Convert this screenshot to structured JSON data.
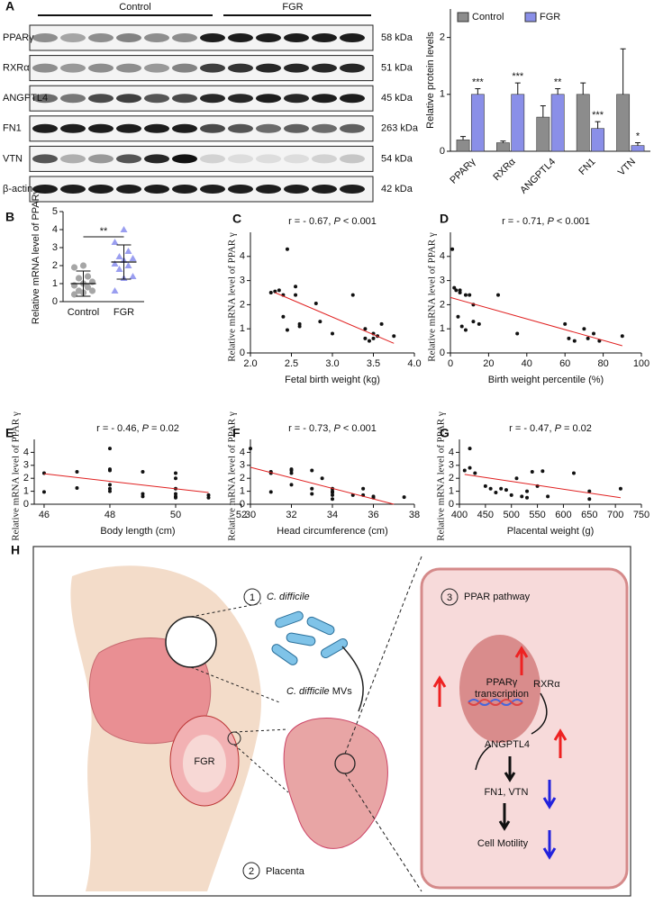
{
  "panel_labels": [
    "A",
    "B",
    "C",
    "D",
    "E",
    "F",
    "G",
    "H"
  ],
  "blot": {
    "groups": [
      "Control",
      "FGR"
    ],
    "rows": [
      {
        "name": "PPARγ",
        "size": "58 kDa"
      },
      {
        "name": "RXRα",
        "size": "51 kDa"
      },
      {
        "name": "ANGPTL4",
        "size": "45 kDa"
      },
      {
        "name": "FN1",
        "size": "263 kDa"
      },
      {
        "name": "VTN",
        "size": "54 kDa"
      },
      {
        "name": "β-actin",
        "size": "42 kDa"
      }
    ]
  },
  "chart_data": [
    {
      "type": "bar",
      "ylabel": "Relative protein levels",
      "categories": [
        "PPARγ",
        "RXRα",
        "ANGPTL4",
        "FN1",
        "VTN"
      ],
      "ylim": [
        0,
        2.5
      ],
      "yticks": [
        0,
        1,
        2
      ],
      "series": [
        {
          "name": "Control",
          "color": "#8c8c8c",
          "values": [
            0.2,
            0.15,
            0.6,
            1.0,
            1.0
          ],
          "errors": [
            0.06,
            0.03,
            0.2,
            0.2,
            0.8
          ]
        },
        {
          "name": "FGR",
          "color": "#8a8fe8",
          "values": [
            1.0,
            1.0,
            1.0,
            0.4,
            0.1
          ],
          "errors": [
            0.1,
            0.2,
            0.1,
            0.12,
            0.05
          ],
          "annotations": [
            "***",
            "***",
            "**",
            "***",
            "*"
          ]
        }
      ]
    },
    {
      "type": "strip",
      "ylabel": "Relative mRNA level of PPARγ",
      "categories": [
        "Control",
        "FGR"
      ],
      "significance": "**",
      "ylim": [
        0,
        5
      ],
      "yticks": [
        0,
        1,
        2,
        3,
        4,
        5
      ],
      "series": [
        {
          "color": "#a6a6a6",
          "marker": "circle",
          "values": [
            0.4,
            0.5,
            0.6,
            0.6,
            0.8,
            0.9,
            1.0,
            1.1,
            1.3,
            1.4,
            1.9,
            2.0
          ],
          "mean": 1.0,
          "sd": 0.7
        },
        {
          "color": "#9a9ef0",
          "marker": "triangle",
          "values": [
            0.6,
            1.3,
            1.4,
            1.8,
            2.0,
            2.1,
            2.3,
            2.4,
            2.5,
            2.8,
            3.3,
            4.0
          ],
          "mean": 2.2,
          "sd": 0.95
        }
      ]
    },
    {
      "type": "scatter",
      "annotation": [
        "r = - 0.67, ",
        "P",
        " < 0.001"
      ],
      "xlabel": "Fetal birth weight (kg)",
      "ylabel": "Relative mRNA level of PPAR γ",
      "xlim": [
        2.0,
        4.0
      ],
      "xticks": [
        {
          "value": 2,
          "label": "2.0"
        },
        2.5,
        {
          "value": 3,
          "label": "3.0"
        },
        3.5,
        {
          "value": 4,
          "label": "4.0"
        }
      ],
      "ylim": [
        0,
        5
      ],
      "yticks": [
        0,
        1,
        2,
        3,
        4
      ],
      "x": [
        2.25,
        2.3,
        2.35,
        2.4,
        2.45,
        2.4,
        2.45,
        2.55,
        2.6,
        2.6,
        2.55,
        2.8,
        2.85,
        3.0,
        3.25,
        3.4,
        3.4,
        3.45,
        3.5,
        3.55,
        3.6,
        3.75,
        3.5
      ],
      "y": [
        2.5,
        2.55,
        2.6,
        2.4,
        4.3,
        1.5,
        0.95,
        2.75,
        1.2,
        1.1,
        2.4,
        2.05,
        1.3,
        0.8,
        2.4,
        1.0,
        0.6,
        0.5,
        0.6,
        0.7,
        1.2,
        0.7,
        0.8
      ],
      "fit": {
        "color": "#e02020",
        "x": [
          2.3,
          3.75
        ],
        "y": [
          2.5,
          0.4
        ]
      }
    },
    {
      "type": "scatter",
      "annotation": [
        "r = - 0.71, ",
        "P",
        " < 0.001"
      ],
      "xlabel": "Birth weight percentile (%)",
      "ylabel": "Relative mRNA level of PPAR γ",
      "xlim": [
        0,
        100
      ],
      "xticks": [
        0,
        20,
        40,
        60,
        80,
        100
      ],
      "ylim": [
        0,
        5
      ],
      "yticks": [
        0,
        1,
        2,
        3,
        4
      ],
      "x": [
        1,
        2,
        3,
        5,
        4,
        6,
        8,
        10,
        12,
        15,
        8,
        25,
        35,
        12,
        60,
        62,
        65,
        70,
        72,
        75,
        78,
        90,
        5
      ],
      "y": [
        4.3,
        2.7,
        2.6,
        2.5,
        1.5,
        1.1,
        0.95,
        2.4,
        1.3,
        1.2,
        2.4,
        2.4,
        0.8,
        2.0,
        1.2,
        0.6,
        0.5,
        1.0,
        0.6,
        0.8,
        0.5,
        0.7,
        2.6
      ],
      "fit": {
        "color": "#e02020",
        "x": [
          0,
          90
        ],
        "y": [
          2.3,
          0.3
        ]
      }
    },
    {
      "type": "scatter",
      "annotation": [
        "r = - 0.46, ",
        "P",
        " = 0.02"
      ],
      "xlabel": "Body length  (cm)",
      "ylabel": "Relative mRNA level of PPAR γ",
      "xlim": [
        45.7,
        52
      ],
      "xticks": [
        46,
        48,
        50,
        52
      ],
      "ylim": [
        0,
        5
      ],
      "yticks": [
        0,
        1,
        2,
        3,
        4
      ],
      "x": [
        46,
        46,
        47,
        47,
        48,
        48,
        48,
        48,
        48,
        48,
        49,
        49,
        49,
        50,
        50,
        50,
        50,
        50,
        50,
        51,
        51
      ],
      "y": [
        2.4,
        0.95,
        2.5,
        1.25,
        4.3,
        2.7,
        2.6,
        1.5,
        1.2,
        1.0,
        2.5,
        0.8,
        0.6,
        2.4,
        2.0,
        1.2,
        0.8,
        0.6,
        0.5,
        0.7,
        0.5
      ],
      "fit": {
        "color": "#e02020",
        "x": [
          46,
          51
        ],
        "y": [
          2.35,
          0.9
        ]
      }
    },
    {
      "type": "scatter",
      "annotation": [
        "r = - 0.73, ",
        "P",
        " < 0.001"
      ],
      "xlabel": "Head circumference   (cm)",
      "ylabel": "Relative mRNA level of PPAR γ",
      "xlim": [
        30,
        38
      ],
      "xticks": [
        30,
        32,
        34,
        36,
        38
      ],
      "ylim": [
        0,
        5
      ],
      "yticks": [
        0,
        1,
        2,
        3,
        4
      ],
      "x": [
        30,
        31,
        31,
        31,
        32,
        32,
        32,
        32,
        33,
        33,
        33,
        33.5,
        34,
        34,
        34,
        34,
        34,
        35,
        35.5,
        35.5,
        36,
        36,
        37.5
      ],
      "y": [
        4.3,
        2.5,
        2.4,
        0.95,
        2.7,
        2.6,
        2.4,
        1.5,
        2.6,
        1.2,
        0.8,
        2.0,
        1.2,
        1.0,
        0.9,
        0.7,
        0.4,
        0.7,
        1.2,
        0.7,
        0.6,
        0.5,
        0.55
      ],
      "fit": {
        "color": "#e02020",
        "x": [
          30,
          37
        ],
        "y": [
          2.85,
          0
        ]
      }
    },
    {
      "type": "scatter",
      "annotation": [
        "r = - 0.47, ",
        "P",
        " = 0.02"
      ],
      "xlabel": "Placental weight   (g)",
      "ylabel": "Relative mRNA level of PPAR γ",
      "xlim": [
        400,
        750
      ],
      "xticks": [
        400,
        450,
        500,
        550,
        600,
        650,
        700,
        750
      ],
      "ylim": [
        0,
        5
      ],
      "yticks": [
        0,
        1,
        2,
        3,
        4
      ],
      "x": [
        410,
        420,
        420,
        430,
        450,
        460,
        470,
        480,
        490,
        500,
        510,
        520,
        530,
        530,
        540,
        550,
        560,
        570,
        620,
        650,
        650,
        710
      ],
      "y": [
        2.6,
        4.3,
        2.8,
        2.4,
        1.4,
        1.2,
        0.9,
        1.2,
        1.1,
        0.7,
        2.0,
        0.6,
        0.5,
        1.0,
        2.5,
        1.4,
        2.55,
        0.6,
        2.4,
        1.0,
        0.4,
        1.2
      ],
      "fit": {
        "color": "#e02020",
        "x": [
          410,
          710
        ],
        "y": [
          2.3,
          0.5
        ]
      }
    }
  ],
  "diagram": {
    "step1": "1",
    "bacteria": "C. difficile",
    "mvs": [
      "C. difficile",
      " MVs"
    ],
    "fgr": "FGR",
    "step2": "2",
    "placenta": "Placenta",
    "step3": "3",
    "pathway": "PPAR pathway",
    "ppar": [
      "PPARγ",
      "transcription"
    ],
    "rxr": "RXRα",
    "angptl4": "ANGPTL4",
    "fn1vtn": "FN1, VTN",
    "motility": "Cell Motility"
  }
}
